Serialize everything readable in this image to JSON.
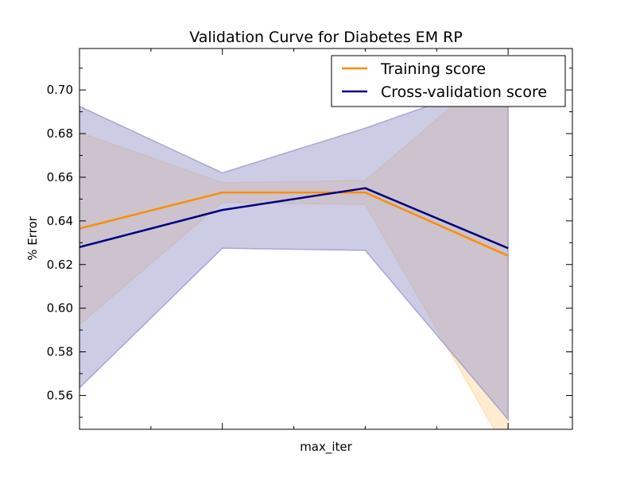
{
  "chart_data": {
    "type": "line",
    "title": "Validation Curve for Diabetes EM RP",
    "xlabel": "max_iter",
    "ylabel": "% Error",
    "ylim": [
      0.5445,
      0.719
    ],
    "yticks": [
      0.56,
      0.58,
      0.6,
      0.62,
      0.64,
      0.66,
      0.68,
      0.7
    ],
    "ytick_labels": [
      "0.56",
      "0.58",
      "0.60",
      "0.62",
      "0.64",
      "0.66",
      "0.68",
      "0.70"
    ],
    "x": [
      0,
      1,
      2,
      3
    ],
    "xlim": [
      0,
      3.45
    ],
    "xtick_labels_shown": false,
    "grid": false,
    "legend_position": "top-right",
    "series": [
      {
        "name": "Training score",
        "color": "#ff8c00",
        "band_color": "#ffdcaa",
        "values": [
          0.6365,
          0.653,
          0.653,
          0.624
        ],
        "upper": [
          0.6805,
          0.6575,
          0.6585,
          0.7145
        ],
        "lower": [
          0.5925,
          0.6485,
          0.6475,
          0.5335
        ]
      },
      {
        "name": "Cross-validation score",
        "color": "#000080",
        "band_color": "#9999cc",
        "values": [
          0.628,
          0.645,
          0.655,
          0.6275
        ],
        "upper": [
          0.6925,
          0.662,
          0.6825,
          0.7055
        ],
        "lower": [
          0.5635,
          0.6275,
          0.6265,
          0.549
        ]
      }
    ]
  }
}
